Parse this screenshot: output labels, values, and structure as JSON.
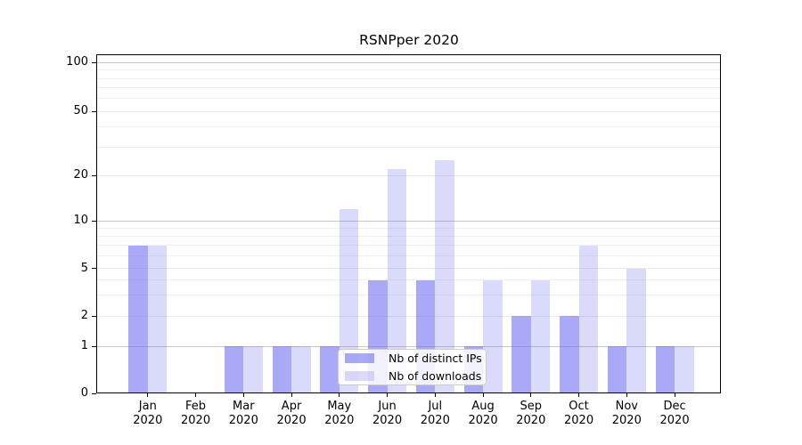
{
  "chart_data": {
    "type": "bar",
    "title": "RSNPper 2020",
    "x_tick_months": [
      "Jan",
      "Feb",
      "Mar",
      "Apr",
      "May",
      "Jun",
      "Jul",
      "Aug",
      "Sep",
      "Oct",
      "Nov",
      "Dec"
    ],
    "x_tick_year": "2020",
    "series": [
      {
        "name": "Nb of distinct IPs",
        "color": "rgba(102,102,240,0.56)",
        "values": [
          7,
          0,
          1,
          1,
          1,
          4,
          4,
          1,
          2,
          2,
          1,
          1
        ]
      },
      {
        "name": "Nb of downloads",
        "color": "rgba(102,102,240,0.24)",
        "values": [
          7,
          0,
          1,
          1,
          12,
          22,
          25,
          4,
          4,
          7,
          5,
          1
        ]
      }
    ],
    "y_ticks": [
      0,
      1,
      2,
      5,
      10,
      20,
      50,
      100
    ],
    "y_major_grid_values": [
      1,
      10,
      100
    ],
    "y_minor_grid_values": [
      3,
      4,
      6,
      7,
      8,
      9,
      30,
      40,
      60,
      70,
      80,
      90
    ],
    "ylim": [
      0,
      100
    ],
    "xlabel": "",
    "ylabel": "",
    "scale": "log-like with zero baseline",
    "grid": true,
    "legend_position": "lower center"
  },
  "colors": {
    "bar_base": "#6666f0",
    "grid_major": "#c6c6c6",
    "grid_minor": "#efefef",
    "axis": "#000000",
    "legend_border": "#cccccc"
  }
}
